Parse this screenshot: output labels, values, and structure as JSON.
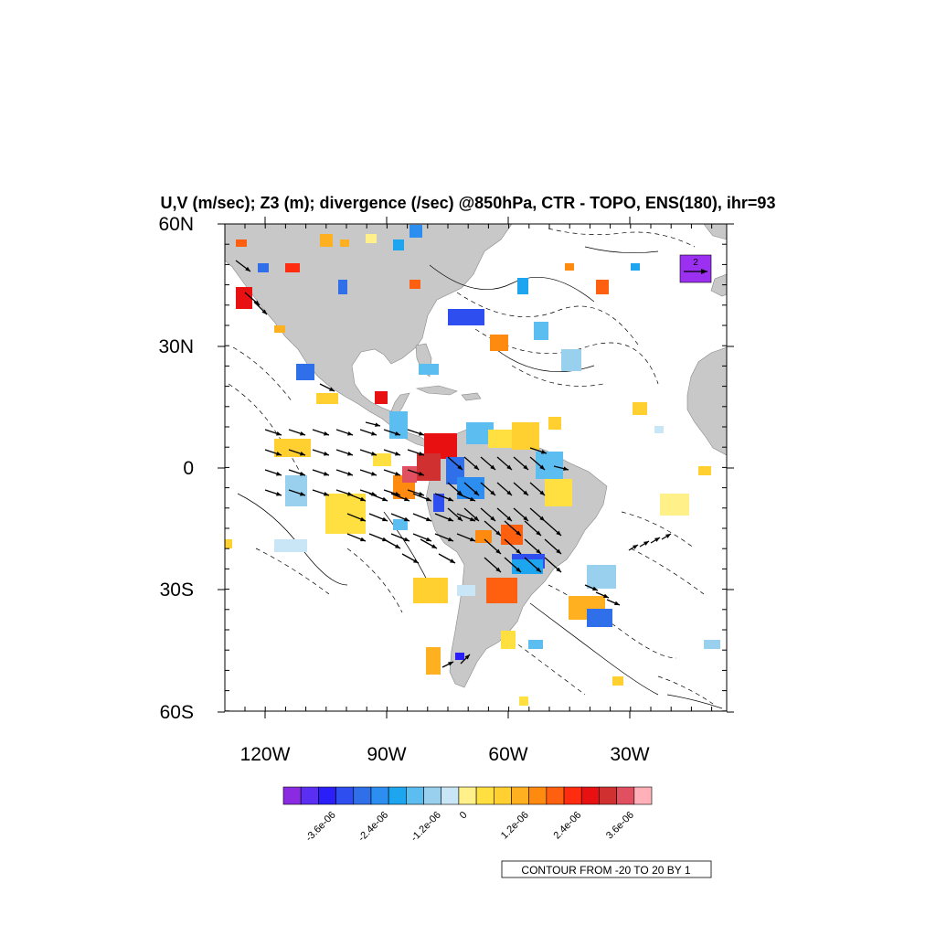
{
  "title": "U,V (m/sec); Z3 (m); divergence (/sec) @850hPa, CTR - TOPO, ENS(180), ihr=93",
  "lat_labels": [
    "60N",
    "30N",
    "0",
    "30S",
    "60S"
  ],
  "lon_labels": [
    "120W",
    "90W",
    "60W",
    "30W"
  ],
  "colorbar": {
    "colors": [
      "#8a2be2",
      "#5b2ff2",
      "#2a1ff8",
      "#2e4ef0",
      "#2f6fea",
      "#2c8ef0",
      "#1ea5f0",
      "#5cbdf0",
      "#98d0ee",
      "#c8e6f6",
      "#fff08a",
      "#ffe040",
      "#ffd030",
      "#ffb020",
      "#ff8a10",
      "#ff6010",
      "#ff2c10",
      "#e81010",
      "#d03030",
      "#e05060",
      "#ffb0b8"
    ],
    "labels": [
      "-3.6e-06",
      "-2.4e-06",
      "-1.2e-06",
      "0",
      "1.2e-06",
      "2.4e-06",
      "3.6e-06"
    ]
  },
  "contour_info": "CONTOUR FROM -20 TO 20 BY 1",
  "ref_vector_label": "2",
  "colors": {
    "land": "#c8c8c8",
    "ocean": "#ffffff",
    "vector": "#000000"
  }
}
